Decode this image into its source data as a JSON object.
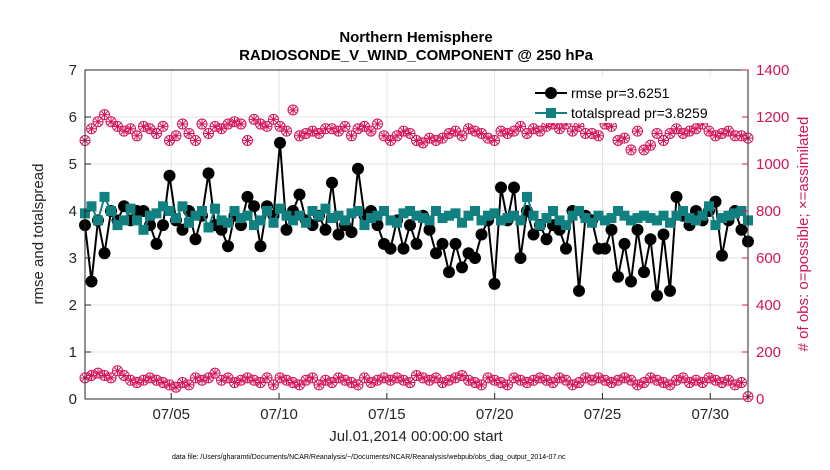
{
  "chart_data": {
    "type": "line",
    "title": [
      "Northern Hemisphere",
      "RADIOSONDE_V_WIND_COMPONENT @ 250 hPa"
    ],
    "xlabel": "Jul.01,2014 00:00:00 start",
    "ylabel": "rmse and totalspread",
    "ylabel_right": "# of obs: o=possible; ×=assimilated",
    "xlim": [
      1,
      31.75
    ],
    "ylim": [
      0,
      7
    ],
    "ylim_right": [
      0,
      1400
    ],
    "xticks": [
      5,
      10,
      15,
      20,
      25,
      30
    ],
    "xtick_labels": [
      "07/05",
      "07/10",
      "07/15",
      "07/20",
      "07/25",
      "07/30"
    ],
    "yticks": [
      0,
      1,
      2,
      3,
      4,
      5,
      6,
      7
    ],
    "yticks_right": [
      0,
      200,
      400,
      600,
      800,
      1000,
      1200,
      1400
    ],
    "grid": true,
    "legend": {
      "position": "top-right",
      "entries": [
        "rmse pr=3.6251",
        "totalspread pr=3.8259"
      ]
    },
    "series": [
      {
        "name": "rmse",
        "axis": "left",
        "color": "#000000",
        "marker": "circle",
        "values": [
          3.7,
          2.5,
          3.8,
          3.1,
          4.0,
          3.8,
          4.1,
          3.8,
          4.0,
          4.0,
          3.7,
          3.3,
          3.7,
          4.75,
          3.8,
          3.6,
          4.0,
          3.4,
          3.9,
          4.8,
          3.7,
          3.6,
          3.25,
          3.9,
          3.7,
          4.3,
          4.1,
          3.25,
          4.1,
          3.9,
          5.45,
          3.6,
          4.0,
          4.35,
          3.8,
          3.7,
          3.9,
          3.6,
          4.6,
          3.5,
          3.7,
          3.55,
          4.9,
          3.9,
          4.0,
          3.7,
          3.3,
          3.2,
          3.8,
          3.2,
          3.7,
          3.3,
          3.9,
          3.6,
          3.1,
          3.3,
          2.7,
          3.3,
          2.8,
          3.1,
          3.0,
          3.5,
          3.8,
          2.45,
          4.5,
          3.8,
          4.5,
          3.0,
          4.0,
          3.5,
          3.7,
          3.4,
          3.7,
          3.6,
          3.2,
          4.0,
          2.3,
          3.9,
          3.8,
          3.2,
          3.2,
          3.6,
          2.6,
          3.3,
          2.5,
          3.6,
          2.7,
          3.4,
          2.2,
          3.5,
          2.3,
          4.3,
          3.9,
          3.7,
          4.0,
          3.8,
          4.0,
          4.2,
          3.05,
          3.8,
          4.0,
          3.6,
          3.35
        ]
      },
      {
        "name": "totalspread",
        "axis": "left",
        "color": "#108080",
        "marker": "square",
        "values": [
          3.95,
          4.1,
          3.8,
          4.3,
          4.0,
          3.7,
          3.8,
          4.05,
          3.8,
          3.6,
          3.9,
          3.95,
          4.1,
          4.0,
          3.85,
          4.1,
          3.75,
          3.9,
          4.0,
          3.65,
          4.05,
          3.8,
          3.75,
          4.0,
          3.85,
          3.9,
          3.7,
          3.8,
          4.0,
          3.75,
          4.05,
          3.9,
          3.8,
          3.9,
          3.75,
          4.0,
          3.9,
          4.05,
          3.85,
          3.9,
          3.8,
          3.95,
          4.0,
          3.7,
          3.85,
          3.9,
          4.0,
          3.8,
          3.75,
          3.95,
          4.0,
          3.9,
          3.85,
          3.8,
          4.0,
          3.85,
          3.9,
          3.95,
          3.75,
          3.9,
          4.0,
          3.8,
          3.9,
          3.95,
          3.8,
          3.85,
          3.9,
          3.8,
          4.3,
          3.9,
          3.7,
          3.85,
          4.0,
          3.8,
          3.7,
          3.9,
          4.0,
          3.85,
          3.75,
          3.9,
          3.8,
          3.85,
          4.0,
          3.9,
          3.8,
          3.85,
          3.9,
          3.85,
          3.8,
          3.9,
          3.75,
          3.9,
          4.0,
          3.85,
          3.8,
          3.9,
          4.1,
          3.7,
          3.85,
          3.9,
          3.95,
          4.0,
          3.8
        ]
      },
      {
        "name": "possible",
        "axis": "right",
        "color": "#d4145a",
        "marker": "circle-open",
        "values": [
          1100,
          1150,
          1180,
          1210,
          1180,
          1160,
          1140,
          1150,
          1120,
          1160,
          1150,
          1130,
          1160,
          1100,
          1120,
          1170,
          1130,
          1100,
          1170,
          1130,
          1160,
          1150,
          1170,
          1180,
          1170,
          1100,
          1190,
          1170,
          1160,
          1190,
          1160,
          1140,
          1230,
          1120,
          1130,
          1140,
          1130,
          1150,
          1150,
          1140,
          1160,
          1120,
          1150,
          1160,
          1140,
          1170,
          1120,
          1100,
          1120,
          1140,
          1130,
          1100,
          1090,
          1110,
          1100,
          1110,
          1130,
          1140,
          1120,
          1150,
          1140,
          1130,
          1110,
          1100,
          1140,
          1130,
          1140,
          1160,
          1130,
          1150,
          1140,
          1160,
          1170,
          1150,
          1170,
          1140,
          1160,
          1130,
          1130,
          1120,
          1170,
          1160,
          1100,
          1110,
          1060,
          1140,
          1060,
          1080,
          1130,
          1100,
          1130,
          1150,
          1130,
          1140,
          1150,
          1170,
          1140,
          1120,
          1130,
          1140,
          1120,
          1120,
          1110
        ]
      },
      {
        "name": "assimilated",
        "axis": "right",
        "color": "#d4145a",
        "marker": "asterisk",
        "values": [
          1100,
          1150,
          1180,
          1210,
          1180,
          1160,
          1140,
          1150,
          1120,
          1160,
          1150,
          1130,
          1160,
          1100,
          1120,
          1170,
          1130,
          1100,
          1170,
          1130,
          1160,
          1150,
          1170,
          1180,
          1170,
          1100,
          1190,
          1170,
          1160,
          1190,
          1160,
          1140,
          1230,
          1120,
          1130,
          1140,
          1130,
          1150,
          1150,
          1140,
          1160,
          1120,
          1150,
          1160,
          1140,
          1170,
          1120,
          1100,
          1120,
          1140,
          1130,
          1100,
          1090,
          1110,
          1100,
          1110,
          1130,
          1140,
          1120,
          1150,
          1140,
          1130,
          1110,
          1100,
          1140,
          1130,
          1140,
          1160,
          1130,
          1150,
          1140,
          1160,
          1170,
          1150,
          1170,
          1140,
          1160,
          1130,
          1130,
          1120,
          1170,
          1160,
          1100,
          1110,
          1060,
          1140,
          1060,
          1080,
          1130,
          1100,
          1130,
          1150,
          1130,
          1140,
          1150,
          1170,
          1140,
          1120,
          1130,
          1140,
          1120,
          1120,
          1110
        ]
      },
      {
        "name": "possible-low",
        "axis": "right",
        "color": "#d4145a",
        "marker": "circle-open",
        "values": [
          90,
          100,
          110,
          100,
          90,
          120,
          100,
          80,
          70,
          80,
          90,
          80,
          70,
          60,
          50,
          70,
          60,
          90,
          80,
          90,
          110,
          80,
          90,
          70,
          80,
          90,
          80,
          70,
          90,
          60,
          90,
          80,
          70,
          60,
          80,
          90,
          60,
          80,
          70,
          90,
          80,
          70,
          60,
          90,
          70,
          80,
          90,
          80,
          90,
          80,
          70,
          100,
          90,
          80,
          90,
          70,
          80,
          90,
          100,
          80,
          70,
          60,
          90,
          80,
          70,
          60,
          90,
          80,
          70,
          80,
          90,
          80,
          70,
          90,
          80,
          60,
          70,
          90,
          80,
          90,
          80,
          70,
          80,
          90,
          80,
          60,
          70,
          90,
          80,
          70,
          60,
          80,
          90,
          70,
          80,
          70,
          90,
          80,
          70,
          80,
          60,
          70,
          10
        ]
      },
      {
        "name": "assimilated-low",
        "axis": "right",
        "color": "#d4145a",
        "marker": "asterisk",
        "values": [
          90,
          100,
          110,
          100,
          90,
          120,
          100,
          80,
          70,
          80,
          90,
          80,
          70,
          60,
          50,
          70,
          60,
          90,
          80,
          90,
          110,
          80,
          90,
          70,
          80,
          90,
          80,
          70,
          90,
          60,
          90,
          80,
          70,
          60,
          80,
          90,
          60,
          80,
          70,
          90,
          80,
          70,
          60,
          90,
          70,
          80,
          90,
          80,
          90,
          80,
          70,
          100,
          90,
          80,
          90,
          70,
          80,
          90,
          100,
          80,
          70,
          60,
          90,
          80,
          70,
          60,
          90,
          80,
          70,
          80,
          90,
          80,
          70,
          90,
          80,
          60,
          70,
          90,
          80,
          90,
          80,
          70,
          80,
          90,
          80,
          60,
          70,
          90,
          80,
          70,
          60,
          80,
          90,
          70,
          80,
          70,
          90,
          80,
          70,
          80,
          60,
          70,
          10
        ]
      }
    ],
    "footnote": "data file: /Users/gharamti/Documents/NCAR/Reanalysis/~/Documents/NCAR/Reanalysis/webpub/obs_diag_output_2014-07.nc"
  }
}
